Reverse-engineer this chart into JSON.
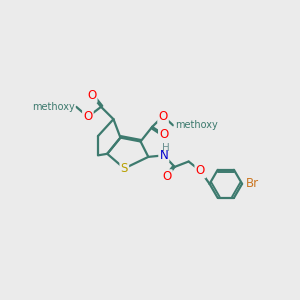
{
  "bg_color": "#ebebeb",
  "bond_color": "#3d7a6e",
  "line_width": 1.6,
  "figsize": [
    3.0,
    3.0
  ],
  "dpi": 100,
  "atom_colors": {
    "O": "#ff0000",
    "S": "#b8a000",
    "N": "#0000cc",
    "H": "#6a9090",
    "Br": "#cc7722",
    "C": "#3d7a6e"
  }
}
